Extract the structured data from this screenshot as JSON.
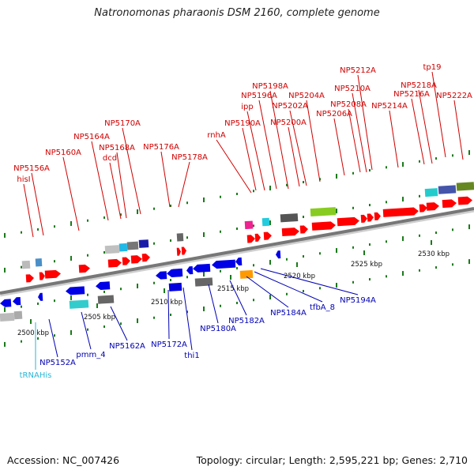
{
  "title": "Natronomonas pharaonis DSM 2160, complete genome",
  "footer": {
    "accession": "Accession: NC_007426",
    "summary": "Topology: circular; Length: 2,595,221 bp; Genes: 2,710"
  },
  "colors": {
    "forward_gene": "#ff0000",
    "reverse_gene": "#0000e6",
    "forward_label": "#d00000",
    "reverse_label": "#0000b4",
    "trna_label": "#2ab6d6",
    "backbone": "#777777",
    "tick": "#1a7a1a"
  },
  "position_ticks": [
    "2500 kbp",
    "2505 kbp",
    "2510 kbp",
    "2515 kbp",
    "2520 kbp",
    "2525 kbp",
    "2530 kbp"
  ],
  "forward_labels": [
    "hisI",
    "NP5156A",
    "NP5160A",
    "NP5164A",
    "dcd",
    "NP5168A",
    "NP5170A",
    "NP5176A",
    "NP5178A",
    "rnhA",
    "NP5190A",
    "ipp",
    "NP5196A",
    "NP5198A",
    "NP5200A",
    "NP5202A",
    "NP5204A",
    "NP5206A",
    "NP5208A",
    "NP5210A",
    "NP5212A",
    "NP5214A",
    "NP5216A",
    "NP5218A",
    "tp19",
    "NP5222A"
  ],
  "reverse_labels": [
    "NP5152A",
    "pmm_4",
    "NP5162A",
    "NP5172A",
    "thi1",
    "NP5180A",
    "NP5182A",
    "NP5184A",
    "tfbA_8",
    "NP5194A"
  ],
  "trna_labels": [
    "tRNAHis"
  ]
}
